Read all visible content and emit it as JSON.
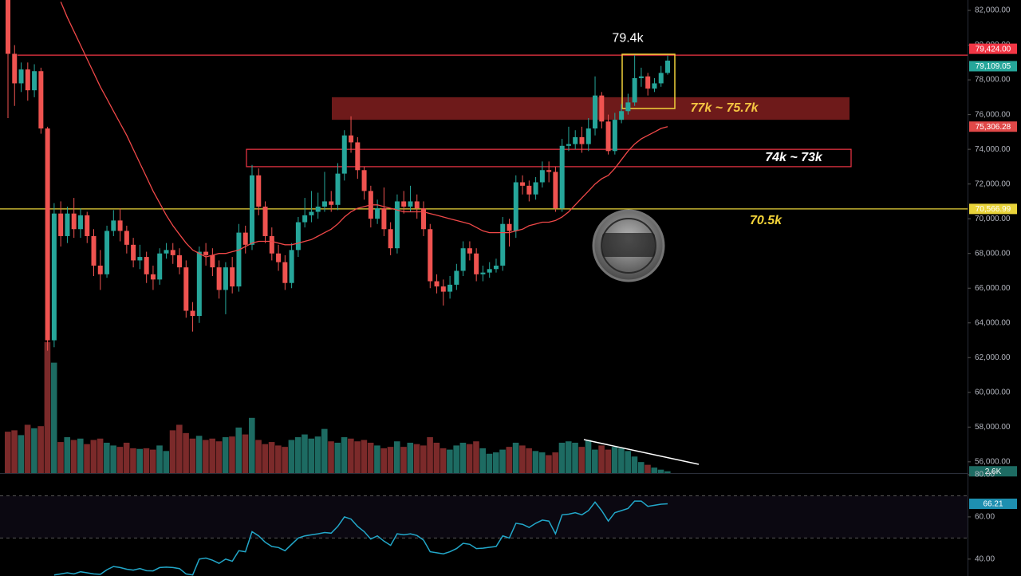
{
  "chart_data": [
    {
      "type": "candlestick",
      "open": [
        82600,
        79500,
        77800,
        78600,
        77400,
        78500,
        75200,
        63000,
        70300,
        69000,
        70300,
        69400,
        70200,
        69000,
        67300,
        66800,
        69300,
        69900,
        69300,
        68500,
        67600,
        67800,
        66800,
        66500,
        68000,
        68200,
        67900,
        67200,
        64700,
        64400,
        68100,
        67900,
        67200,
        65900,
        67200,
        66100,
        69200,
        68500,
        72500,
        70700,
        69000,
        68000,
        67500,
        66300,
        68200,
        69800,
        70200,
        70400,
        70700,
        71000,
        70800,
        72600,
        74800,
        74400,
        72800,
        71600,
        70000,
        70600,
        69400,
        68300,
        71000,
        70700,
        71000,
        70600,
        69400,
        66400,
        66100,
        65800,
        66200,
        67000,
        68300,
        68000,
        66800,
        66900,
        67100,
        67300,
        69700,
        69300,
        72100,
        71900,
        71400,
        72100,
        72800,
        72700,
        70600,
        74200,
        74300,
        74700,
        74300,
        75200,
        77100,
        75600,
        73900,
        75700,
        76200,
        76700,
        78100,
        78200,
        77500,
        77800,
        78400
      ],
      "high": [
        82600,
        80000,
        79000,
        79000,
        78900,
        78700,
        75300,
        70900,
        71000,
        70700,
        71200,
        70600,
        70400,
        69400,
        68200,
        69600,
        70500,
        70600,
        69600,
        68900,
        68500,
        68100,
        67300,
        68300,
        68600,
        68600,
        68300,
        67600,
        65200,
        68400,
        68600,
        68300,
        67600,
        67500,
        67800,
        69700,
        69600,
        73100,
        72900,
        71000,
        69500,
        68500,
        67900,
        68600,
        70100,
        71200,
        71600,
        71500,
        72700,
        71600,
        73200,
        75100,
        75900,
        74700,
        73000,
        71900,
        71100,
        71800,
        69800,
        71400,
        71600,
        71900,
        71400,
        71000,
        69700,
        66800,
        66500,
        66700,
        67400,
        68700,
        68700,
        68300,
        67300,
        67500,
        67700,
        70100,
        70000,
        72500,
        72500,
        72200,
        72400,
        73300,
        73300,
        73000,
        74600,
        75300,
        75100,
        75300,
        75800,
        78200,
        77300,
        76000,
        76100,
        76600,
        77200,
        79424,
        78700,
        78400,
        78100,
        78800,
        79400
      ],
      "low": [
        75800,
        76500,
        77300,
        76800,
        77000,
        74900,
        62400,
        62600,
        68400,
        68600,
        68900,
        68900,
        68600,
        66700,
        65900,
        66600,
        69000,
        68700,
        68000,
        67200,
        67100,
        66300,
        65900,
        66200,
        67700,
        67400,
        66800,
        64300,
        63500,
        64000,
        67300,
        66700,
        65400,
        64500,
        65700,
        65800,
        68000,
        68200,
        70200,
        68600,
        67600,
        67000,
        65900,
        66000,
        67800,
        69500,
        69800,
        70000,
        70400,
        70400,
        70500,
        72200,
        73800,
        72300,
        71100,
        69500,
        69700,
        69000,
        67900,
        68000,
        70300,
        70400,
        70000,
        69000,
        66000,
        65700,
        65000,
        65400,
        65900,
        66700,
        67600,
        66400,
        66400,
        66600,
        66900,
        67000,
        68400,
        68900,
        71400,
        71000,
        71100,
        71800,
        72100,
        70400,
        70400,
        73900,
        74000,
        73800,
        73900,
        74800,
        75200,
        73700,
        73700,
        75500,
        76000,
        76500,
        77600,
        77100,
        77300,
        77600,
        78300
      ],
      "close": [
        79500,
        77800,
        78600,
        77400,
        78500,
        75200,
        63000,
        70300,
        69000,
        70300,
        69400,
        70200,
        69000,
        67300,
        66800,
        69300,
        69900,
        69300,
        68500,
        67600,
        67800,
        66800,
        66500,
        68000,
        68200,
        67900,
        67200,
        64700,
        64400,
        68100,
        67900,
        67200,
        65900,
        67200,
        66100,
        69200,
        68500,
        72500,
        70700,
        69000,
        68000,
        67500,
        66300,
        68200,
        69800,
        70200,
        70400,
        70700,
        71000,
        70800,
        72600,
        74800,
        74400,
        72800,
        71600,
        70000,
        70600,
        69400,
        68300,
        71000,
        70700,
        71000,
        70600,
        69400,
        66400,
        66100,
        65800,
        66200,
        67000,
        68300,
        68000,
        66800,
        66900,
        67100,
        67300,
        69700,
        69300,
        72100,
        71900,
        71400,
        72100,
        72800,
        72700,
        70600,
        74200,
        74300,
        74700,
        74300,
        75200,
        77100,
        75600,
        73900,
        75700,
        76200,
        76700,
        78100,
        78200,
        77500,
        77800,
        78400,
        79109.05
      ],
      "colors": {
        "up": "#26a69a",
        "down": "#ef5350"
      },
      "last_price": {
        "value": 79109.05,
        "label": "79,109.05",
        "color": "#26a69a"
      },
      "ma": {
        "color": "#f04848",
        "values": [
          null,
          null,
          null,
          null,
          null,
          null,
          null,
          null,
          82500,
          81600,
          80800,
          80000,
          79200,
          78400,
          77600,
          76900,
          76200,
          75500,
          74800,
          74000,
          73200,
          72400,
          71600,
          70900,
          70200,
          69600,
          69100,
          68600,
          68200,
          68000,
          67800,
          67900,
          68000,
          68000,
          68100,
          68200,
          68400,
          68600,
          68700,
          68700,
          68700,
          68600,
          68500,
          68500,
          68600,
          68700,
          68800,
          69000,
          69200,
          69400,
          69700,
          70100,
          70400,
          70600,
          70700,
          70800,
          70800,
          70700,
          70600,
          70500,
          70400,
          70400,
          70400,
          70400,
          70300,
          70200,
          70100,
          70000,
          69900,
          69800,
          69700,
          69500,
          69300,
          69200,
          69200,
          69200,
          69200,
          69300,
          69400,
          69600,
          69700,
          69800,
          69800,
          69900,
          70100,
          70400,
          70800,
          71200,
          71600,
          72000,
          72300,
          72500,
          72900,
          73400,
          73900,
          74300,
          74600,
          74800,
          75000,
          75200,
          75306.28
        ],
        "last_label": {
          "value": 75306.28,
          "label": "75,306.28"
        }
      },
      "ylim": [
        55350,
        82600
      ],
      "yticks": [
        {
          "value": 56000,
          "label": "56,000.00"
        },
        {
          "value": 58000,
          "label": "58,000.00"
        },
        {
          "value": 60000,
          "label": "60,000.00"
        },
        {
          "value": 62000,
          "label": "62,000.00"
        },
        {
          "value": 64000,
          "label": "64,000.00"
        },
        {
          "value": 66000,
          "label": "66,000.00"
        },
        {
          "value": 68000,
          "label": "68,000.00"
        },
        {
          "value": 70000,
          "label": "70,000.00"
        },
        {
          "value": 72000,
          "label": "72,000.00"
        },
        {
          "value": 74000,
          "label": "74,000.00"
        },
        {
          "value": 76000,
          "label": "76,000.00"
        },
        {
          "value": 78000,
          "label": "78,000.00"
        },
        {
          "value": 80000,
          "label": "80,000.00"
        },
        {
          "value": 82000,
          "label": "82,000.00"
        }
      ],
      "levels": [
        {
          "value": 79424,
          "label": "79,424.00",
          "color": "#f23645",
          "note": "79.4k"
        },
        {
          "value": 70566.99,
          "label": "70,566.99",
          "color": "#e8d33a",
          "note": "70.5k"
        }
      ],
      "zones": [
        {
          "low": 75700,
          "high": 77000,
          "label": "77k ~ 75.7k"
        },
        {
          "low": 73000,
          "high": 74000,
          "label": "74k ~ 73k"
        }
      ]
    },
    {
      "type": "bar",
      "values": [
        60,
        62,
        55,
        70,
        65,
        68,
        190,
        160,
        45,
        52,
        48,
        50,
        42,
        48,
        50,
        44,
        40,
        38,
        44,
        36,
        35,
        36,
        34,
        40,
        32,
        62,
        70,
        58,
        50,
        54,
        48,
        50,
        46,
        52,
        53,
        66,
        56,
        80,
        48,
        42,
        45,
        40,
        38,
        48,
        52,
        56,
        50,
        53,
        64,
        46,
        44,
        52,
        50,
        46,
        48,
        44,
        40,
        36,
        38,
        46,
        38,
        44,
        42,
        40,
        52,
        44,
        36,
        34,
        40,
        44,
        42,
        46,
        36,
        28,
        30,
        34,
        38,
        44,
        40,
        36,
        32,
        30,
        26,
        30,
        44,
        46,
        44,
        38,
        48,
        34,
        40,
        34,
        38,
        36,
        32,
        24,
        16,
        12,
        8,
        5,
        2.6
      ],
      "colors": {
        "up": "#1d6b62",
        "down": "#7b2a2a"
      },
      "ylim": [
        0,
        200
      ],
      "last_label": {
        "value": 2.6,
        "label": "2.6K"
      }
    },
    {
      "type": "line",
      "values": [
        null,
        null,
        null,
        null,
        null,
        null,
        null,
        32.5,
        33,
        33.5,
        33,
        34,
        33.5,
        33,
        32.8,
        35,
        36.5,
        36,
        35.2,
        34.8,
        35.5,
        34.5,
        34.4,
        36,
        36.2,
        36,
        35.5,
        33,
        32.5,
        40,
        40.5,
        39.5,
        38,
        40,
        39,
        44,
        43.5,
        53,
        51,
        48,
        46,
        45.5,
        44,
        47,
        50,
        51,
        51.5,
        52,
        52.6,
        52.3,
        55.5,
        60,
        59,
        55.5,
        53,
        49.5,
        51,
        48.5,
        46.5,
        52,
        51.5,
        52,
        51.2,
        49,
        43.5,
        43,
        42.5,
        43.5,
        45,
        47.5,
        47,
        45,
        45.2,
        45.6,
        46,
        51,
        50,
        57,
        56.5,
        55,
        57,
        58.5,
        58,
        52,
        61,
        61.3,
        62,
        61,
        63,
        67,
        63,
        58,
        62,
        63,
        64,
        67.5,
        67.5,
        65,
        65.5,
        66,
        66.21
      ],
      "color": "#22a7c9",
      "ylim": [
        32,
        80
      ],
      "yticks": [
        {
          "value": 80,
          "label": "80.00"
        },
        {
          "value": 60,
          "label": "60.00"
        },
        {
          "value": 40,
          "label": "40.00"
        }
      ],
      "bands": [
        70,
        50
      ],
      "last_label": {
        "value": 66.21,
        "label": "66.21"
      }
    }
  ]
}
